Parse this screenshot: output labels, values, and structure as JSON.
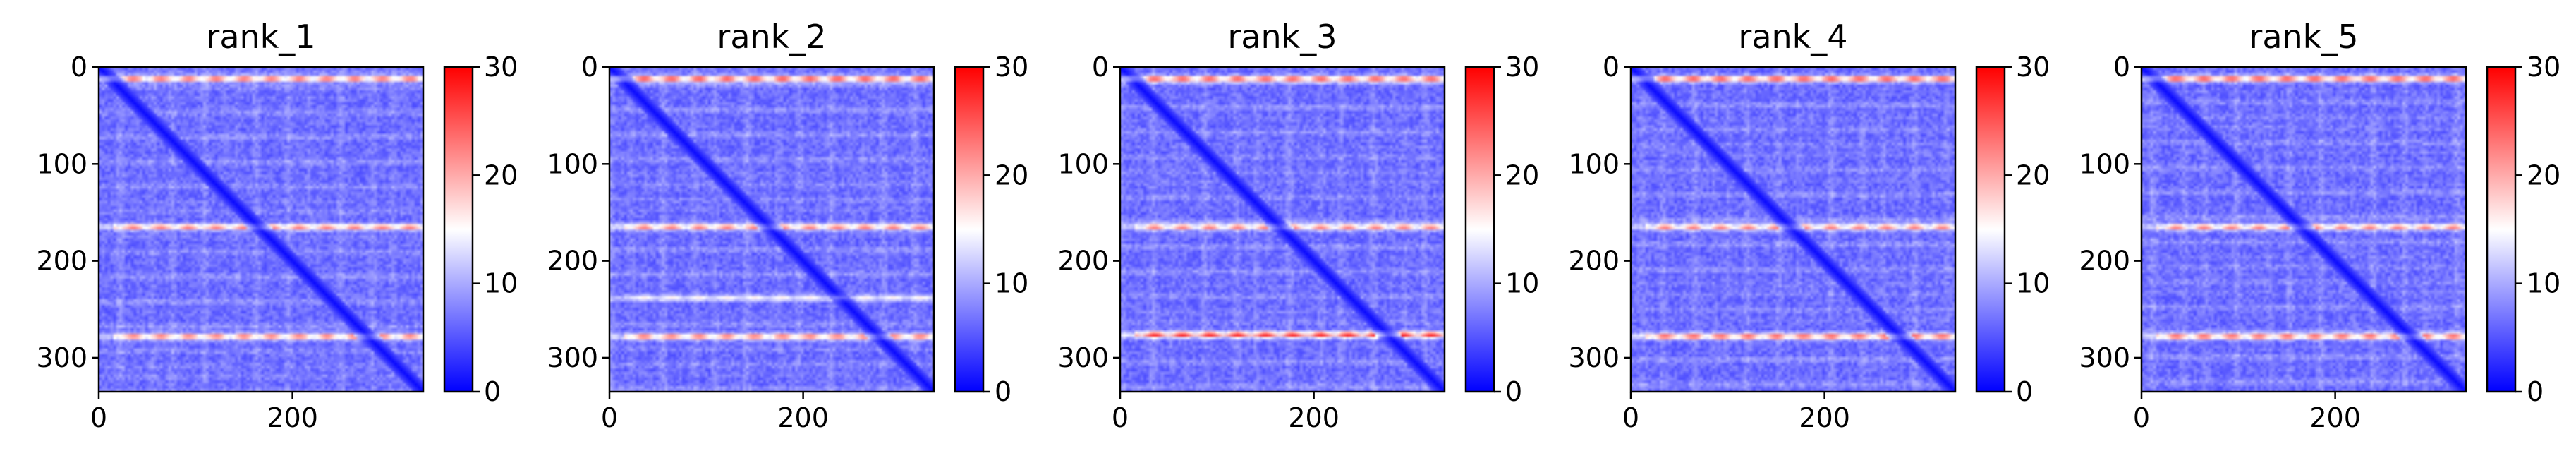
{
  "colors": {
    "low": "#0000ff",
    "mid": "#ffffff",
    "high": "#ff0000",
    "axis": "#000000"
  },
  "chart_data": [
    {
      "type": "heatmap",
      "title": "rank_1",
      "xlim": [
        0,
        335
      ],
      "ylim": [
        335,
        0
      ],
      "xticks": [
        0,
        200
      ],
      "yticks": [
        0,
        100,
        200,
        300
      ],
      "colorbar": {
        "vmin": 0,
        "vmax": 30,
        "ticks": [
          0,
          10,
          20,
          30
        ],
        "colormap": "bwr"
      },
      "bands": [
        {
          "center": 12,
          "value": 26
        },
        {
          "center": 165,
          "value": 24
        },
        {
          "center": 278,
          "value": 25
        }
      ]
    },
    {
      "type": "heatmap",
      "title": "rank_2",
      "xlim": [
        0,
        335
      ],
      "ylim": [
        335,
        0
      ],
      "xticks": [
        0,
        200
      ],
      "yticks": [
        0,
        100,
        200,
        300
      ],
      "colorbar": {
        "vmin": 0,
        "vmax": 30,
        "ticks": [
          0,
          10,
          20,
          30
        ],
        "colormap": "bwr"
      },
      "bands": [
        {
          "center": 12,
          "value": 28
        },
        {
          "center": 165,
          "value": 24
        },
        {
          "center": 238,
          "value": 16
        },
        {
          "center": 278,
          "value": 25
        }
      ]
    },
    {
      "type": "heatmap",
      "title": "rank_3",
      "xlim": [
        0,
        335
      ],
      "ylim": [
        335,
        0
      ],
      "xticks": [
        0,
        200
      ],
      "yticks": [
        0,
        100,
        200,
        300
      ],
      "colorbar": {
        "vmin": 0,
        "vmax": 30,
        "ticks": [
          0,
          10,
          20,
          30
        ],
        "colormap": "bwr"
      },
      "bands": [
        {
          "center": 12,
          "value": 27
        },
        {
          "center": 165,
          "value": 24
        },
        {
          "center": 276,
          "value": 29
        }
      ]
    },
    {
      "type": "heatmap",
      "title": "rank_4",
      "xlim": [
        0,
        335
      ],
      "ylim": [
        335,
        0
      ],
      "xticks": [
        0,
        200
      ],
      "yticks": [
        0,
        100,
        200,
        300
      ],
      "colorbar": {
        "vmin": 0,
        "vmax": 30,
        "ticks": [
          0,
          10,
          20,
          30
        ],
        "colormap": "bwr"
      },
      "bands": [
        {
          "center": 12,
          "value": 27
        },
        {
          "center": 165,
          "value": 24
        },
        {
          "center": 278,
          "value": 26
        }
      ]
    },
    {
      "type": "heatmap",
      "title": "rank_5",
      "xlim": [
        0,
        335
      ],
      "ylim": [
        335,
        0
      ],
      "xticks": [
        0,
        200
      ],
      "yticks": [
        0,
        100,
        200,
        300
      ],
      "colorbar": {
        "vmin": 0,
        "vmax": 30,
        "ticks": [
          0,
          10,
          20,
          30
        ],
        "colormap": "bwr"
      },
      "bands": [
        {
          "center": 12,
          "value": 27
        },
        {
          "center": 165,
          "value": 24
        },
        {
          "center": 278,
          "value": 26
        }
      ]
    }
  ]
}
